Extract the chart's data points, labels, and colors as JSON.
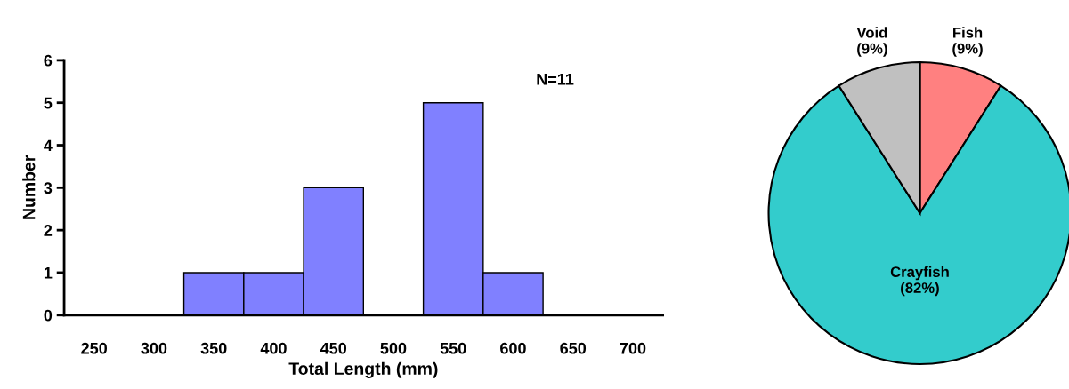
{
  "chart_data": [
    {
      "type": "histogram",
      "xlabel": "Total Length (mm)",
      "ylabel": "Number",
      "bins": [
        225,
        275,
        325,
        375,
        425,
        475,
        525,
        575,
        625,
        675,
        725
      ],
      "values": [
        0,
        0,
        1,
        1,
        3,
        0,
        5,
        1,
        0,
        0
      ],
      "color": "#8080ff",
      "xlim": [
        225,
        725
      ],
      "xticks": [
        250,
        300,
        350,
        400,
        450,
        500,
        550,
        600,
        650,
        700
      ],
      "ylim": [
        0,
        6
      ],
      "yticks": [
        0,
        1,
        2,
        3,
        4,
        5,
        6
      ],
      "grid": false,
      "annotations": [
        "N=11"
      ]
    },
    {
      "type": "pie",
      "categories": [
        "Fish",
        "Crayfish",
        "Void"
      ],
      "values": [
        9,
        82,
        9
      ],
      "colors": [
        "#ff8080",
        "#33cccc",
        "#c0c0c0"
      ],
      "value_labels": [
        "(9%)",
        "(82%)",
        "(9%)"
      ]
    }
  ]
}
